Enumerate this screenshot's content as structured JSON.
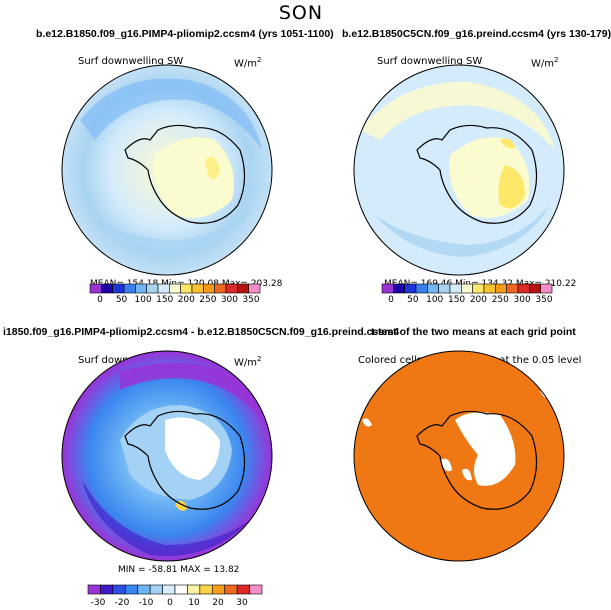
{
  "figure": {
    "title": "SON"
  },
  "panels": [
    {
      "title": "b.e12.B1850.f09_g16.PIMP4-pliomip2.ccsm4 (yrs 1051-1100)",
      "variable": "Surf downwelling SW",
      "units": "W/m",
      "units_exp": "2",
      "stats": "MEAN= 154.18  Min= 120.08  Max= 203.28",
      "colorbar": {
        "labels": [
          "0",
          "50",
          "100",
          "150",
          "200",
          "250",
          "300",
          "350"
        ],
        "colors": [
          "#9a33d6",
          "#1c00a6",
          "#1d36d8",
          "#3a7fee",
          "#74b5f5",
          "#a8d4f2",
          "#d4ebfb",
          "#fbfbd0",
          "#fde86a",
          "#fbc12e",
          "#f59a1a",
          "#f0661e",
          "#dc2a28",
          "#b41414",
          "#f58dc8"
        ]
      }
    },
    {
      "title": "b.e12.B1850C5CN.f09_g16.preind.ccsm4 (yrs 130-179)",
      "variable": "Surf downwelling SW",
      "units": "W/m",
      "units_exp": "2",
      "stats": "MEAN= 169.46  Min= 134.32  Max= 210.22",
      "colorbar": {
        "labels": [
          "0",
          "50",
          "100",
          "150",
          "200",
          "250",
          "300",
          "350"
        ],
        "colors": [
          "#9a33d6",
          "#1c00a6",
          "#1d36d8",
          "#3a7fee",
          "#74b5f5",
          "#a8d4f2",
          "#d4ebfb",
          "#fbfbd0",
          "#fde86a",
          "#fbc12e",
          "#f59a1a",
          "#f0661e",
          "#dc2a28",
          "#b41414",
          "#f58dc8"
        ]
      }
    },
    {
      "title": "i1850.f09_g16.PIMP4-pliomip2.ccsm4 - b.e12.B1850C5CN.f09_g16.preind.ccsm4",
      "variable": "Surf downwelling SW",
      "units": "W/m",
      "units_exp": "2",
      "stats": "MIN = -58.81  MAX =  13.82",
      "colorbar": {
        "labels": [
          "-30",
          "-20",
          "-10",
          "0",
          "10",
          "20",
          "30"
        ],
        "colors": [
          "#9a33d6",
          "#3c1ac8",
          "#2a4fe3",
          "#3a86ef",
          "#6cb3f4",
          "#a4d2f4",
          "#d9eefc",
          "#ffffff",
          "#fbf2a6",
          "#fcd248",
          "#f7a01c",
          "#ee6a1e",
          "#dc2a28",
          "#f58dc8"
        ]
      }
    },
    {
      "title": "t-test of the two means at each grid point",
      "variable": "Colored cells are significant at the 0.05 level"
    }
  ]
}
